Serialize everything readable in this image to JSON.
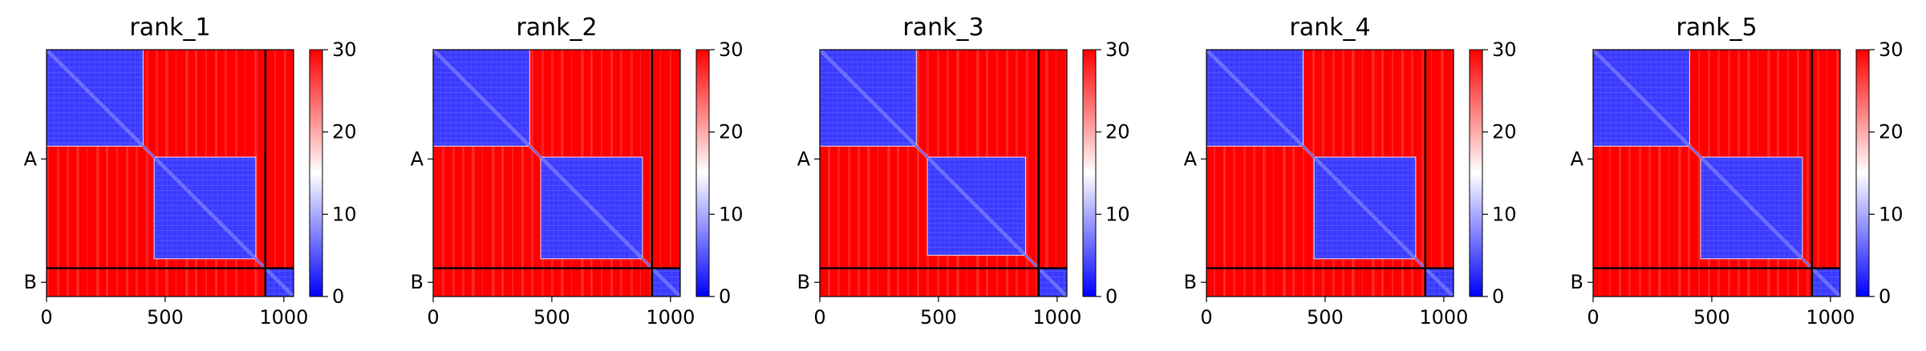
{
  "chart_data": [
    {
      "type": "heatmap",
      "title": "rank_1",
      "n": 1041,
      "chain_break": 922,
      "x_ticks": [
        0,
        500,
        1000
      ],
      "y_ticks": [
        {
          "label": "A",
          "value": 461
        },
        {
          "label": "B",
          "value": 981
        }
      ],
      "colorbar": {
        "min": 0,
        "max": 30,
        "ticks": [
          0,
          10,
          20,
          30
        ],
        "colors": [
          "#0000ff",
          "#ffffff",
          "#ff0000"
        ]
      },
      "low_blocks": [
        [
          0,
          405
        ],
        [
          455,
          880
        ],
        [
          922,
          1041
        ]
      ]
    },
    {
      "type": "heatmap",
      "title": "rank_2",
      "n": 1041,
      "chain_break": 922,
      "x_ticks": [
        0,
        500,
        1000
      ],
      "y_ticks": [
        {
          "label": "A",
          "value": 461
        },
        {
          "label": "B",
          "value": 981
        }
      ],
      "colorbar": {
        "min": 0,
        "max": 30,
        "ticks": [
          0,
          10,
          20,
          30
        ],
        "colors": [
          "#0000ff",
          "#ffffff",
          "#ff0000"
        ]
      },
      "low_blocks": [
        [
          0,
          405
        ],
        [
          455,
          880
        ],
        [
          922,
          1041
        ]
      ]
    },
    {
      "type": "heatmap",
      "title": "rank_3",
      "n": 1041,
      "chain_break": 922,
      "x_ticks": [
        0,
        500,
        1000
      ],
      "y_ticks": [
        {
          "label": "A",
          "value": 461
        },
        {
          "label": "B",
          "value": 981
        }
      ],
      "colorbar": {
        "min": 0,
        "max": 30,
        "ticks": [
          0,
          10,
          20,
          30
        ],
        "colors": [
          "#0000ff",
          "#ffffff",
          "#ff0000"
        ]
      },
      "low_blocks": [
        [
          0,
          405
        ],
        [
          455,
          865
        ],
        [
          922,
          1041
        ]
      ]
    },
    {
      "type": "heatmap",
      "title": "rank_4",
      "n": 1041,
      "chain_break": 922,
      "x_ticks": [
        0,
        500,
        1000
      ],
      "y_ticks": [
        {
          "label": "A",
          "value": 461
        },
        {
          "label": "B",
          "value": 981
        }
      ],
      "colorbar": {
        "min": 0,
        "max": 30,
        "ticks": [
          0,
          10,
          20,
          30
        ],
        "colors": [
          "#0000ff",
          "#ffffff",
          "#ff0000"
        ]
      },
      "low_blocks": [
        [
          0,
          405
        ],
        [
          455,
          880
        ],
        [
          922,
          1041
        ]
      ]
    },
    {
      "type": "heatmap",
      "title": "rank_5",
      "n": 1041,
      "chain_break": 922,
      "x_ticks": [
        0,
        500,
        1000
      ],
      "y_ticks": [
        {
          "label": "A",
          "value": 461
        },
        {
          "label": "B",
          "value": 981
        }
      ],
      "colorbar": {
        "min": 0,
        "max": 30,
        "ticks": [
          0,
          10,
          20,
          30
        ],
        "colors": [
          "#0000ff",
          "#ffffff",
          "#ff0000"
        ]
      },
      "low_blocks": [
        [
          0,
          405
        ],
        [
          455,
          880
        ],
        [
          922,
          1041
        ]
      ]
    }
  ]
}
